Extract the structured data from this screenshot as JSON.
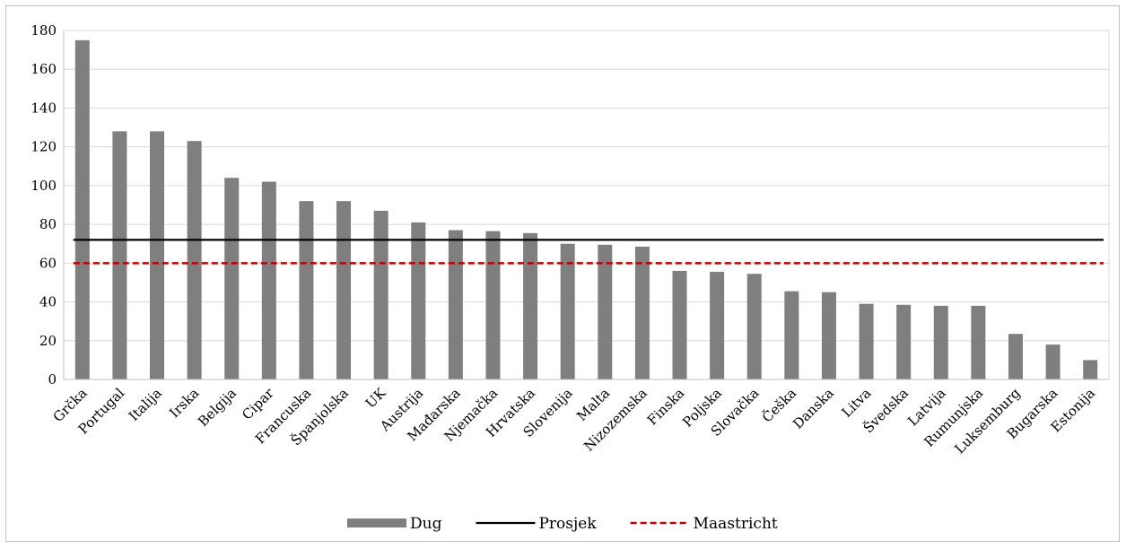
{
  "chart_data": {
    "type": "bar",
    "title": "",
    "xlabel": "",
    "ylabel": "",
    "ylim": [
      0,
      180
    ],
    "yticks": [
      0,
      20,
      40,
      60,
      80,
      100,
      120,
      140,
      160,
      180
    ],
    "grid": true,
    "legend_position": "bottom",
    "categories": [
      "Grčka",
      "Portugal",
      "Italija",
      "Irska",
      "Belgija",
      "Cipar",
      "Francuska",
      "Španjolska",
      "UK",
      "Austrija",
      "Mađarska",
      "Njemačka",
      "Hrvatska",
      "Slovenija",
      "Malta",
      "Nizozemska",
      "Finska",
      "Poljska",
      "Slovačka",
      "Češka",
      "Danska",
      "Litva",
      "Švedska",
      "Latvija",
      "Rumunjska",
      "Luksemburg",
      "Bugarska",
      "Estonija"
    ],
    "series": [
      {
        "name": "Dug",
        "kind": "bar",
        "color": "#7f7f7f",
        "values": [
          175,
          128,
          128,
          123,
          104,
          102,
          92,
          92,
          87,
          81,
          77,
          76.5,
          75.5,
          70,
          69.5,
          68.5,
          56,
          55.5,
          54.5,
          45.5,
          45,
          39,
          38.5,
          38,
          38,
          23.5,
          18,
          10
        ]
      },
      {
        "name": "Prosjek",
        "kind": "line",
        "color": "#000000",
        "value": 72
      },
      {
        "name": "Maastricht",
        "kind": "dashed-line",
        "color": "#c00000",
        "value": 60
      }
    ]
  }
}
